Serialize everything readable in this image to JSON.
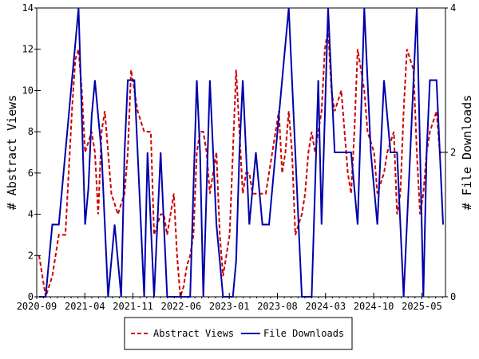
{
  "chart_data": {
    "type": "line",
    "title": "",
    "xlabel": "",
    "ylabel_left": "# Abstract Views",
    "ylabel_right": "# File Downloads",
    "ylim_left": [
      0,
      14
    ],
    "ylim_right": [
      0,
      4
    ],
    "yticks_left": [
      "0",
      "2",
      "4",
      "6",
      "8",
      "10",
      "12",
      "14"
    ],
    "yticks_right": [
      "0",
      "2",
      "4"
    ],
    "x_ticks": [
      "2020-09",
      "2021-04",
      "2021-11",
      "2022-06",
      "2023-01",
      "2023-08",
      "2024-03",
      "2024-10",
      "2025-05"
    ],
    "legend_placement": "bottom",
    "colors": {
      "views": "#cc0000",
      "downloads": "#0000aa"
    },
    "series": [
      {
        "name": "Abstract Views",
        "axis": "left",
        "style": "dashed",
        "values": [
          2,
          1,
          0,
          0.5,
          1,
          2,
          3,
          3,
          3,
          6,
          9,
          11.5,
          12,
          10,
          7,
          7.5,
          8,
          7,
          4,
          8,
          9,
          7,
          5,
          4.5,
          4,
          4.5,
          5,
          7,
          11,
          10,
          9,
          8.5,
          8,
          8,
          8,
          3,
          3.5,
          4,
          4,
          3,
          4,
          5,
          2,
          0,
          0.5,
          1.5,
          2,
          3,
          7,
          8,
          8,
          7,
          5,
          6,
          7,
          3,
          1,
          2,
          3,
          7,
          11,
          8,
          5,
          6,
          6,
          5,
          5,
          5,
          5,
          5,
          6,
          7,
          8,
          9,
          6,
          7,
          9,
          7,
          3,
          3.5,
          4,
          5,
          7,
          8,
          7,
          8,
          9,
          12,
          13,
          10,
          9,
          9.5,
          10,
          8,
          6,
          5,
          8,
          12,
          11,
          10,
          8,
          7.5,
          7,
          5,
          5.5,
          6,
          7,
          7.5,
          8,
          4,
          5,
          9,
          12,
          11.5,
          11,
          7,
          4,
          5,
          7,
          8,
          8.5,
          9,
          7,
          7
        ]
      },
      {
        "name": "File Downloads",
        "axis": "right",
        "style": "solid",
        "values": [
          0,
          0,
          0,
          0.5,
          1,
          1,
          1,
          1.5,
          2,
          2.5,
          3,
          3.5,
          4,
          2.5,
          1,
          1.5,
          2.5,
          3,
          2.5,
          2,
          1,
          0,
          0.5,
          1,
          0.5,
          0,
          2,
          3,
          3,
          3,
          2,
          1,
          0,
          2,
          1,
          0,
          1,
          2,
          1,
          0,
          0,
          0,
          0,
          0,
          0,
          0,
          0,
          1.5,
          3,
          2,
          0,
          1.5,
          3,
          2,
          1,
          0.5,
          0,
          0,
          0,
          0,
          0.5,
          2,
          3,
          2,
          1,
          1.5,
          2,
          1.5,
          1,
          1,
          1,
          1.5,
          2,
          2.5,
          3,
          3.5,
          4,
          3,
          2,
          1,
          0,
          0,
          0,
          0,
          1.5,
          3,
          1,
          2.5,
          4,
          3,
          2,
          2,
          2,
          2,
          2,
          2,
          1.5,
          1,
          2.5,
          4,
          3,
          2,
          1.5,
          1,
          2,
          3,
          2.5,
          2,
          2,
          2,
          1,
          0,
          1,
          2,
          3,
          4,
          2,
          0,
          2,
          3,
          3,
          3,
          2,
          1
        ]
      }
    ]
  }
}
